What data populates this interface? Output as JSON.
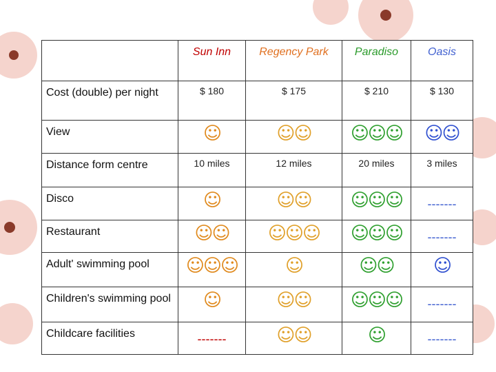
{
  "table": {
    "columns": [
      {
        "name": "Sun Inn",
        "color": "#c00000",
        "mark_color": "#e08a1e"
      },
      {
        "name": "Regency Park",
        "color": "#e07020",
        "mark_color": "#e0a02a"
      },
      {
        "name": "Paradiso",
        "color": "#2a9a2a",
        "mark_color": "#30a030"
      },
      {
        "name": "Oasis",
        "color": "#4060d0",
        "mark_color": "#3050d0"
      }
    ],
    "rows": [
      {
        "label": "Cost (double) per night",
        "cells": [
          "$ 180",
          "$ 175",
          "$ 210",
          "$ 130"
        ]
      },
      {
        "label": "View",
        "cells": [
          "☺",
          "☺☺",
          "☺☺☺",
          "☺☺"
        ]
      },
      {
        "label": "Distance form centre",
        "cells": [
          "10 miles",
          "12 miles",
          "20 miles",
          "3 miles"
        ]
      },
      {
        "label": "Disco",
        "cells": [
          "☺",
          "☺☺",
          "☺☺☺",
          "-------"
        ]
      },
      {
        "label": "Restaurant",
        "cells": [
          "☺☺",
          "☺☺☺",
          "☺☺☺",
          "-------"
        ]
      },
      {
        "label": "Adult' swimming pool",
        "cells": [
          "☺☺☺",
          "☺",
          "☺☺",
          "☺"
        ]
      },
      {
        "label": "Children's swimming pool",
        "cells": [
          "☺",
          "☺☺",
          "☺☺☺",
          "-------"
        ]
      },
      {
        "label": "Childcare facilities",
        "cells": [
          "-------",
          "☺☺",
          "☺",
          "-------"
        ]
      }
    ]
  }
}
